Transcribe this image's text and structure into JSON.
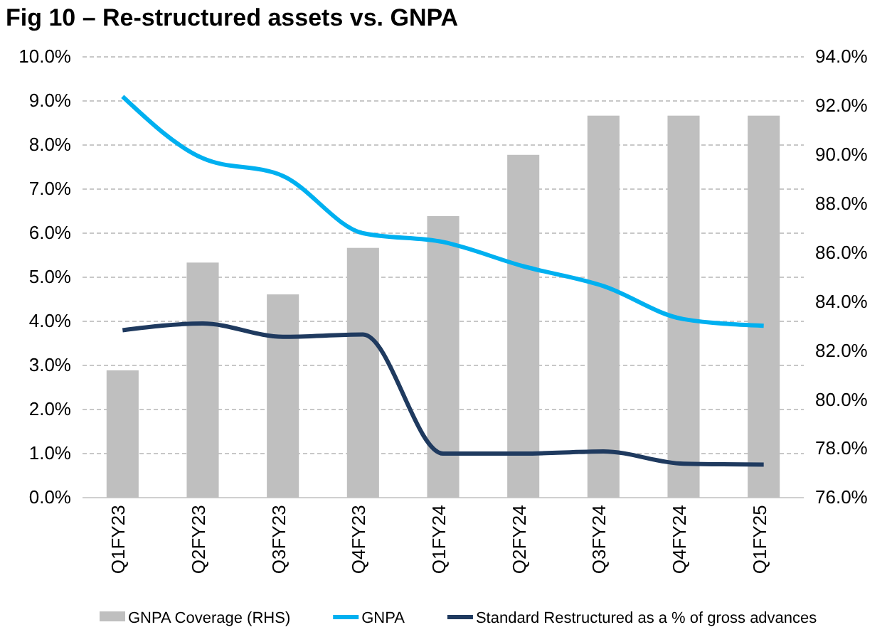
{
  "chart_data": {
    "type": "bar",
    "title": "Fig 10 – Re-structured assets vs. GNPA",
    "categories": [
      "Q1FY23",
      "Q2FY23",
      "Q3FY23",
      "Q4FY23",
      "Q1FY24",
      "Q2FY24",
      "Q3FY24",
      "Q4FY24",
      "Q1FY25"
    ],
    "series": [
      {
        "name": "GNPA Coverage (RHS)",
        "axis": "y2",
        "color": "#bfbfbf",
        "values": [
          81.2,
          85.6,
          84.3,
          86.2,
          87.5,
          90.0,
          91.6,
          91.6,
          91.6
        ]
      },
      {
        "name": "GNPA",
        "type": "line",
        "color": "#00b0f0",
        "values": [
          9.1,
          7.7,
          7.3,
          6.0,
          5.8,
          5.25,
          4.8,
          4.05,
          3.9
        ]
      },
      {
        "name": "Standard Restructured as a % of gross advances",
        "type": "line",
        "color": "#1f3a5f",
        "values": [
          3.8,
          3.95,
          3.65,
          3.7,
          1.0,
          1.0,
          1.05,
          0.77,
          0.75
        ]
      }
    ],
    "ylim": [
      0,
      10
    ],
    "yticks": [
      {
        "value": 0,
        "label": "0.0%"
      },
      {
        "value": 1,
        "label": "1.0%"
      },
      {
        "value": 2,
        "label": "2.0%"
      },
      {
        "value": 3,
        "label": "3.0%"
      },
      {
        "value": 4,
        "label": "4.0%"
      },
      {
        "value": 5,
        "label": "5.0%"
      },
      {
        "value": 6,
        "label": "6.0%"
      },
      {
        "value": 7,
        "label": "7.0%"
      },
      {
        "value": 8,
        "label": "8.0%"
      },
      {
        "value": 9,
        "label": "9.0%"
      },
      {
        "value": 10,
        "label": "10.0%"
      }
    ],
    "y2lim": [
      76,
      94
    ],
    "y2ticks": [
      {
        "value": 76,
        "label": "76.0%"
      },
      {
        "value": 78,
        "label": "78.0%"
      },
      {
        "value": 80,
        "label": "80.0%"
      },
      {
        "value": 82,
        "label": "82.0%"
      },
      {
        "value": 84,
        "label": "84.0%"
      },
      {
        "value": 86,
        "label": "86.0%"
      },
      {
        "value": 88,
        "label": "88.0%"
      },
      {
        "value": 90,
        "label": "90.0%"
      },
      {
        "value": 92,
        "label": "92.0%"
      },
      {
        "value": 94,
        "label": "94.0%"
      }
    ],
    "grid": "y",
    "legend": "bottom",
    "marker": "none"
  }
}
